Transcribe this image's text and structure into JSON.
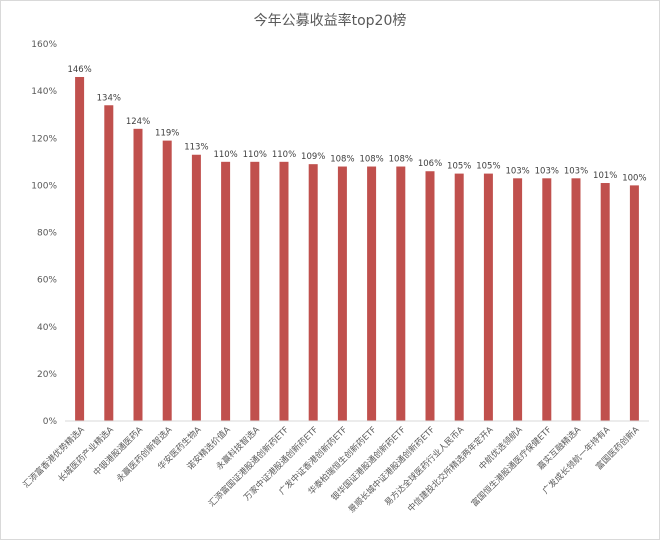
{
  "chart_data": {
    "type": "bar",
    "title": "今年公募收益率top20榜",
    "xlabel": "",
    "ylabel": "",
    "ylim": [
      0,
      160
    ],
    "yticks": [
      "0%",
      "20%",
      "40%",
      "60%",
      "80%",
      "100%",
      "120%",
      "140%",
      "160%"
    ],
    "grid": false,
    "legend": "none",
    "bar_color": "#c0504d",
    "categories": [
      "汇添富香港优势精选A",
      "长城医药产业精选A",
      "中银港股通医药A",
      "永赢医药创新智选A",
      "华安医药生物A",
      "诺安精选价值A",
      "永赢科技智选A",
      "汇添富国证港股通创新药ETF",
      "万家中证港股通创新药ETF",
      "广发中证香港创新药ETF",
      "华泰柏瑞恒生创新药ETF",
      "银华国证港股通创新药ETF",
      "景顺长城中证港股通创新药ETF",
      "易方达全球医药行业人民币A",
      "中信建投北交所精选两年定开A",
      "中航优选领航A",
      "富国恒生港股通医疗保健ETF",
      "嘉实互融精选A",
      "广发成长领航一年持有A",
      "富国医药创新A"
    ],
    "values": [
      146,
      134,
      124,
      119,
      113,
      110,
      110,
      110,
      109,
      108,
      108,
      108,
      106,
      105,
      105,
      103,
      103,
      103,
      101,
      100
    ],
    "data_labels": [
      "146%",
      "134%",
      "124%",
      "119%",
      "113%",
      "110%",
      "110%",
      "110%",
      "109%",
      "108%",
      "108%",
      "108%",
      "106%",
      "105%",
      "105%",
      "103%",
      "103%",
      "103%",
      "101%",
      "100%"
    ]
  }
}
